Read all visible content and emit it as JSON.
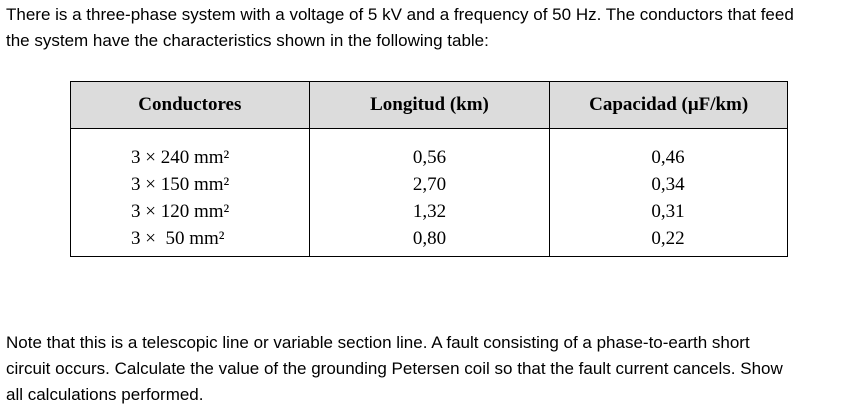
{
  "intro_lines": [
    "There is a three-phase system with a voltage of 5 kV and a frequency of 50 Hz. The conductors that feed",
    "the system have the characteristics shown in the following table:"
  ],
  "table": {
    "headers": [
      "Conductores",
      "Longitud (km)",
      "Capacidad (μF/km)"
    ],
    "rows": [
      [
        "3 × 240 mm²",
        "0,56",
        "0,46"
      ],
      [
        "3 × 150 mm²",
        "2,70",
        "0,34"
      ],
      [
        "3 × 120 mm²",
        "1,32",
        "0,31"
      ],
      [
        "3 ×  50 mm²",
        "0,80",
        "0,22"
      ]
    ]
  },
  "note_lines": [
    "Note that this is a telescopic line or variable section line. A fault consisting of a phase-to-earth short",
    "circuit occurs. Calculate the value of the grounding Petersen coil so that the fault current cancels. Show",
    "all calculations performed."
  ]
}
